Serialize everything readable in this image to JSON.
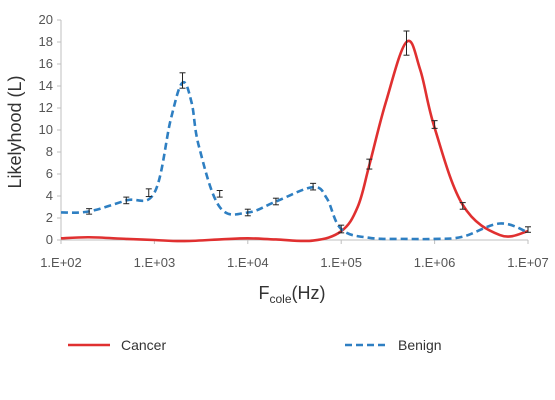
{
  "chart_data": {
    "type": "line",
    "x_scale": "log",
    "xlim": [
      100,
      10000000
    ],
    "ylim": [
      0,
      20
    ],
    "x_ticks": [
      100,
      1000,
      10000,
      100000,
      1000000,
      10000000
    ],
    "x_tick_labels": [
      "1.E+02",
      "1.E+03",
      "1.E+04",
      "1.E+05",
      "1.E+06",
      "1.E+07"
    ],
    "y_ticks": [
      0,
      2,
      4,
      6,
      8,
      10,
      12,
      14,
      16,
      18,
      20
    ],
    "y_tick_labels": [
      "0",
      "2",
      "4",
      "6",
      "8",
      "10",
      "12",
      "14",
      "16",
      "18",
      "20"
    ],
    "xlabel": {
      "main": "F",
      "sub": "cole",
      "unit": "(Hz)"
    },
    "ylabel": "Likelyhood (L)",
    "grid": false,
    "legend": "bottom",
    "series": [
      {
        "name": "Cancer",
        "style": "solid",
        "color": "#e03030",
        "x": [
          100,
          200,
          500,
          1000,
          2000,
          5000,
          10000,
          20000,
          50000,
          100000,
          150000,
          200000,
          300000,
          500000,
          700000,
          1000000,
          2000000,
          5000000,
          10000000
        ],
        "y": [
          0.15,
          0.25,
          0.1,
          0.0,
          -0.1,
          0.05,
          0.15,
          0.05,
          -0.05,
          0.8,
          3.0,
          6.8,
          12.5,
          18.0,
          15.5,
          10.2,
          3.2,
          0.45,
          0.8
        ],
        "error_x": [
          1000000,
          2000000,
          10000000
        ],
        "error_y": [
          10.5,
          3.1,
          0.95
        ],
        "error_size": [
          0.35,
          0.3,
          0.25
        ]
      },
      {
        "name": "Benign",
        "style": "dashed",
        "color": "#2e7fc2",
        "x": [
          100,
          200,
          500,
          1000,
          1500,
          2000,
          2500,
          3000,
          5000,
          10000,
          20000,
          50000,
          70000,
          100000,
          200000,
          500000,
          1000000,
          2000000,
          5000000,
          10000000
        ],
        "y": [
          2.5,
          2.6,
          3.6,
          4.3,
          11.0,
          14.3,
          12.5,
          8.5,
          3.0,
          2.5,
          3.5,
          4.8,
          3.8,
          1.0,
          0.2,
          0.1,
          0.1,
          0.3,
          1.5,
          0.7
        ],
        "error_x": [
          200,
          500,
          870,
          2000,
          5000,
          10000,
          20000,
          50000,
          100000,
          200000,
          500000
        ],
        "error_y": [
          2.6,
          3.6,
          4.3,
          14.5,
          4.2,
          2.5,
          3.5,
          4.85,
          1.0,
          6.9,
          17.9
        ],
        "error_size": [
          0.25,
          0.3,
          0.35,
          0.7,
          0.3,
          0.3,
          0.3,
          0.3,
          0.35,
          0.45,
          1.1
        ]
      }
    ]
  }
}
